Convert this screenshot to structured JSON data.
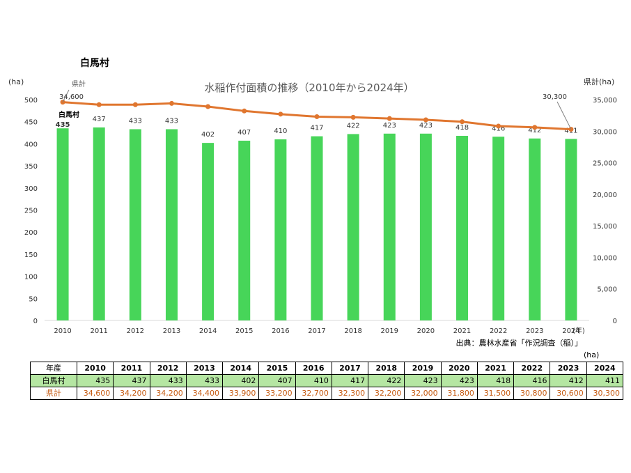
{
  "village_title": "白馬村",
  "source": "出典：農林水産省「作況調査（稲）」",
  "table_unit": "(ha)",
  "colors": {
    "bar": "#47d559",
    "line": "#e0762f",
    "table_green": "#b5e6a2",
    "pref_text": "#c55a11"
  },
  "chart_data": {
    "type": "bar+line",
    "title": "水稲作付面積の推移（2010年から2024年）",
    "left_unit": "(ha)",
    "right_unit": "県計(ha)",
    "x_unit": "(年)",
    "categories": [
      "2010",
      "2011",
      "2012",
      "2013",
      "2014",
      "2015",
      "2016",
      "2017",
      "2018",
      "2019",
      "2020",
      "2021",
      "2022",
      "2023",
      "2024"
    ],
    "left_ticks": [
      "0",
      "50",
      "100",
      "150",
      "200",
      "250",
      "300",
      "350",
      "400",
      "450",
      "500"
    ],
    "right_ticks": [
      "0",
      "5,000",
      "10,000",
      "15,000",
      "20,000",
      "25,000",
      "30,000",
      "35,000"
    ],
    "ylim_left": [
      0,
      500
    ],
    "ylim_right": [
      0,
      35000
    ],
    "series": [
      {
        "name": "白馬村",
        "axis": "left",
        "kind": "bar",
        "values": [
          435,
          437,
          433,
          433,
          402,
          407,
          410,
          417,
          422,
          423,
          423,
          418,
          416,
          412,
          411
        ]
      },
      {
        "name": "県計",
        "axis": "right",
        "kind": "line",
        "values": [
          34600,
          34200,
          34200,
          34400,
          33900,
          33200,
          32700,
          32300,
          32200,
          32000,
          31800,
          31500,
          30800,
          30600,
          30300
        ]
      }
    ],
    "annotations": {
      "village_label": "白馬村",
      "pref_label": "県計",
      "pref_first": "34,600",
      "pref_last": "30,300"
    }
  },
  "table": {
    "header_label": "年産",
    "years": [
      "2010",
      "2011",
      "2012",
      "2013",
      "2014",
      "2015",
      "2016",
      "2017",
      "2018",
      "2019",
      "2020",
      "2021",
      "2022",
      "2023",
      "2024"
    ],
    "village_label": "白馬村",
    "village_values": [
      "435",
      "437",
      "433",
      "433",
      "402",
      "407",
      "410",
      "417",
      "422",
      "423",
      "423",
      "418",
      "416",
      "412",
      "411"
    ],
    "pref_label": "県計",
    "pref_values": [
      "34,600",
      "34,200",
      "34,200",
      "34,400",
      "33,900",
      "33,200",
      "32,700",
      "32,300",
      "32,200",
      "32,000",
      "31,800",
      "31,500",
      "30,800",
      "30,600",
      "30,300"
    ]
  }
}
